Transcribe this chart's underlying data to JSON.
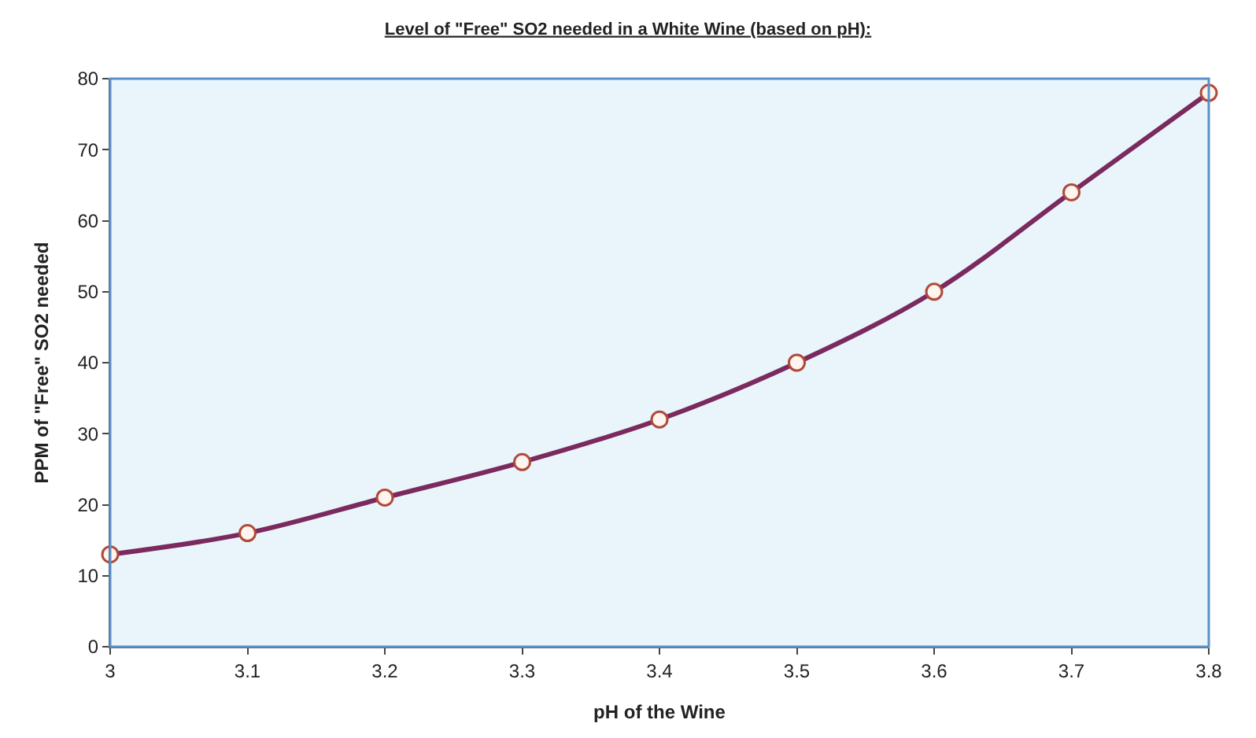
{
  "chart_data": {
    "type": "line",
    "title": "Level of \"Free\" SO2 needed in a White Wine (based on pH):",
    "xlabel": "pH of the Wine",
    "ylabel": "PPM of \"Free\" SO2 needed",
    "x": [
      3,
      3.1,
      3.2,
      3.3,
      3.4,
      3.5,
      3.6,
      3.7,
      3.8
    ],
    "series": [
      {
        "color": "#7a2a5e",
        "values": [
          13,
          16,
          21,
          26,
          32,
          40,
          50,
          64,
          78
        ]
      }
    ],
    "xlim": [
      3,
      3.8
    ],
    "xticks": [
      3,
      3.1,
      3.2,
      3.3,
      3.4,
      3.5,
      3.6,
      3.7,
      3.8
    ],
    "ylim": [
      0,
      80
    ],
    "yticks": [
      0,
      10,
      20,
      30,
      40,
      50,
      60,
      70,
      80
    ],
    "grid": false,
    "legend": false,
    "marker": "circle",
    "line_style": "solid"
  }
}
